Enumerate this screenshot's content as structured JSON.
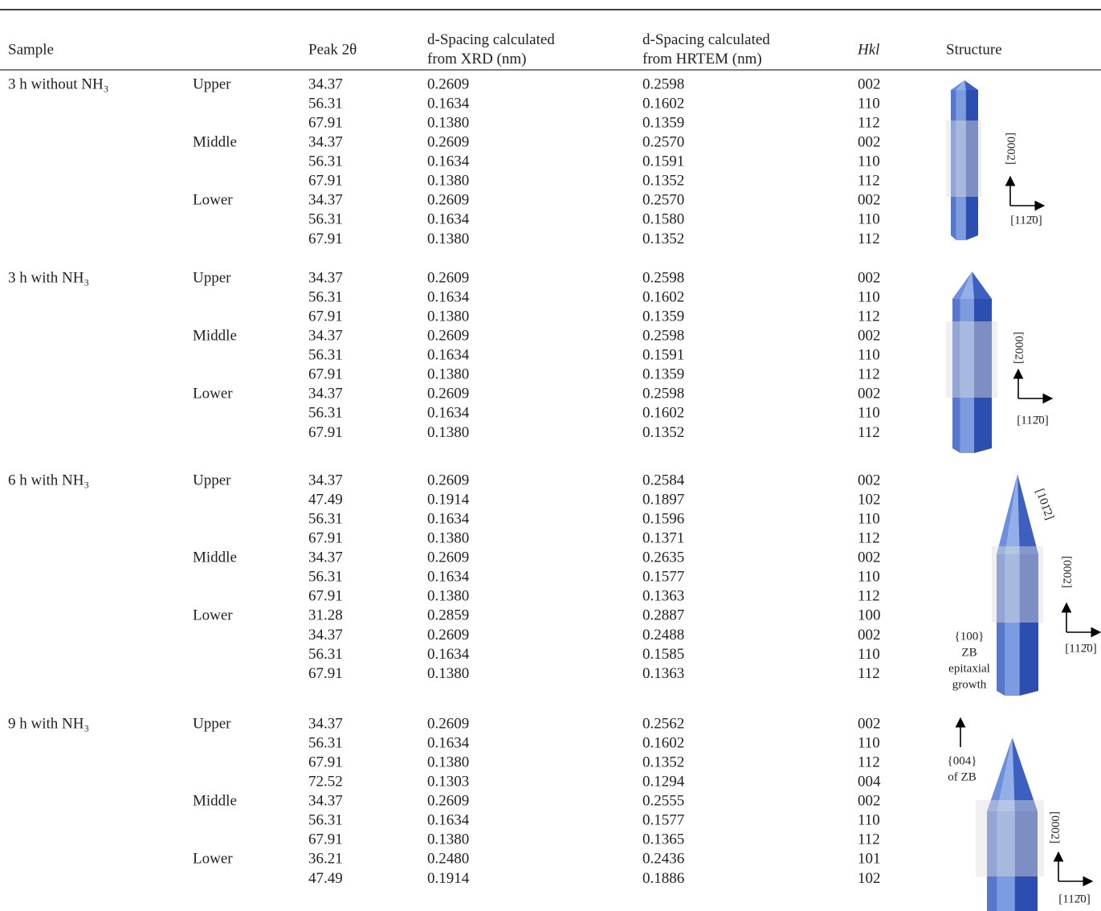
{
  "table": {
    "header": [
      "Sample",
      "Peak 2θ",
      "d-Spacing calculated from XRD (nm)",
      "d-Spacing calculated from HRTEM (nm)",
      "Hkl",
      "Structure"
    ],
    "groups": [
      {
        "sample": "3 h without NH₃",
        "sections": [
          {
            "position": "Upper",
            "rows": [
              [
                "34.37",
                "0.2609",
                "0.2598",
                "002"
              ],
              [
                "56.31",
                "0.1634",
                "0.1602",
                "110"
              ],
              [
                "67.91",
                "0.1380",
                "0.1359",
                "112"
              ]
            ]
          },
          {
            "position": "Middle",
            "rows": [
              [
                "34.37",
                "0.2609",
                "0.2570",
                "002"
              ],
              [
                "56.31",
                "0.1634",
                "0.1591",
                "110"
              ],
              [
                "67.91",
                "0.1380",
                "0.1352",
                "112"
              ]
            ]
          },
          {
            "position": "Lower",
            "rows": [
              [
                "34.37",
                "0.2609",
                "0.2570",
                "002"
              ],
              [
                "56.31",
                "0.1634",
                "0.1580",
                "110"
              ],
              [
                "67.91",
                "0.1380",
                "0.1352",
                "112"
              ]
            ]
          }
        ]
      },
      {
        "sample": "3 h with NH₃",
        "sections": [
          {
            "position": "Upper",
            "rows": [
              [
                "34.37",
                "0.2609",
                "0.2598",
                "002"
              ],
              [
                "56.31",
                "0.1634",
                "0.1602",
                "110"
              ],
              [
                "67.91",
                "0.1380",
                "0.1359",
                "112"
              ]
            ]
          },
          {
            "position": "Middle",
            "rows": [
              [
                "34.37",
                "0.2609",
                "0.2598",
                "002"
              ],
              [
                "56.31",
                "0.1634",
                "0.1591",
                "110"
              ],
              [
                "67.91",
                "0.1380",
                "0.1359",
                "112"
              ]
            ]
          },
          {
            "position": "Lower",
            "rows": [
              [
                "34.37",
                "0.2609",
                "0.2598",
                "002"
              ],
              [
                "56.31",
                "0.1634",
                "0.1602",
                "110"
              ],
              [
                "67.91",
                "0.1380",
                "0.1352",
                "112"
              ]
            ]
          }
        ]
      },
      {
        "sample": "6 h with NH₃",
        "sections": [
          {
            "position": "Upper",
            "rows": [
              [
                "34.37",
                "0.2609",
                "0.2584",
                "002"
              ],
              [
                "47.49",
                "0.1914",
                "0.1897",
                "102"
              ],
              [
                "56.31",
                "0.1634",
                "0.1596",
                "110"
              ],
              [
                "67.91",
                "0.1380",
                "0.1371",
                "112"
              ]
            ]
          },
          {
            "position": "Middle",
            "rows": [
              [
                "34.37",
                "0.2609",
                "0.2635",
                "002"
              ],
              [
                "56.31",
                "0.1634",
                "0.1577",
                "110"
              ],
              [
                "67.91",
                "0.1380",
                "0.1363",
                "112"
              ]
            ]
          },
          {
            "position": "Lower",
            "rows": [
              [
                "31.28",
                "0.2859",
                "0.2887",
                "100"
              ],
              [
                "34.37",
                "0.2609",
                "0.2488",
                "002"
              ],
              [
                "56.31",
                "0.1634",
                "0.1585",
                "110"
              ],
              [
                "67.91",
                "0.1380",
                "0.1363",
                "112"
              ]
            ]
          }
        ]
      },
      {
        "sample": "9 h with NH₃",
        "sections": [
          {
            "position": "Upper",
            "rows": [
              [
                "34.37",
                "0.2609",
                "0.2562",
                "002"
              ],
              [
                "56.31",
                "0.1634",
                "0.1602",
                "110"
              ],
              [
                "67.91",
                "0.1380",
                "0.1352",
                "112"
              ],
              [
                "72.52",
                "0.1303",
                "0.1294",
                "004"
              ]
            ]
          },
          {
            "position": "Middle",
            "rows": [
              [
                "34.37",
                "0.2609",
                "0.2555",
                "002"
              ],
              [
                "56.31",
                "0.1634",
                "0.1577",
                "110"
              ],
              [
                "67.91",
                "0.1380",
                "0.1365",
                "112"
              ]
            ]
          },
          {
            "position": "Lower",
            "rows": [
              [
                "36.21",
                "0.2480",
                "0.2436",
                "101"
              ],
              [
                "47.49",
                "0.1914",
                "0.1886",
                "102"
              ]
            ]
          }
        ]
      }
    ]
  },
  "structure": [
    {
      "labels": [
        "[0002]",
        "[112̄0]"
      ]
    },
    {
      "labels": [
        "[0002]",
        "[112̄0]"
      ]
    },
    {
      "labels": [
        "[101̄2]",
        "[0002]",
        "[112̄0]"
      ],
      "note": [
        "{100}",
        "ZB",
        "epitaxial",
        "growth"
      ]
    },
    {
      "labels": [
        "[0002]",
        "[112̄0]"
      ],
      "note": [
        "{004}",
        "of ZB"
      ]
    }
  ]
}
